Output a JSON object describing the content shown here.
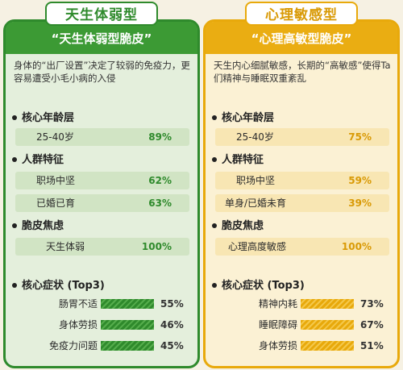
{
  "left": {
    "type_label": "天生体弱型",
    "title": "“天生体弱型脆皮”",
    "description": "身体的“出厂设置”决定了较弱的免疫力，更容易遭受小毛小病的入侵",
    "age_section": "核心年龄层",
    "age_rows": [
      {
        "label": "25-40岁",
        "value": "89%"
      }
    ],
    "group_section": "人群特征",
    "group_rows": [
      {
        "label": "职场中坚",
        "value": "62%"
      },
      {
        "label": "已婚已育",
        "value": "63%"
      }
    ],
    "anxiety_section": "脆皮焦虑",
    "anxiety_rows": [
      {
        "label": "天生体弱",
        "value": "100%"
      }
    ],
    "symptom_section": "核心症状 (Top3)",
    "symptoms": [
      {
        "label": "肠胃不适",
        "value": "55%"
      },
      {
        "label": "身体劳损",
        "value": "46%"
      },
      {
        "label": "免疫力问题",
        "value": "45%"
      }
    ]
  },
  "right": {
    "type_label": "心理敏感型",
    "title": "“心理高敏型脆皮”",
    "description": "天生内心细腻敏感，长期的“高敏感”使得Ta们精神与睡眠双重紊乱",
    "age_section": "核心年龄层",
    "age_rows": [
      {
        "label": "25-40岁",
        "value": "75%"
      }
    ],
    "group_section": "人群特征",
    "group_rows": [
      {
        "label": "职场中坚",
        "value": "59%"
      },
      {
        "label": "单身/已婚未育",
        "value": "39%"
      }
    ],
    "anxiety_section": "脆皮焦虑",
    "anxiety_rows": [
      {
        "label": "心理高度敏感",
        "value": "100%"
      }
    ],
    "symptom_section": "核心症状 (Top3)",
    "symptoms": [
      {
        "label": "精神内耗",
        "value": "73%"
      },
      {
        "label": "睡眠障碍",
        "value": "67%"
      },
      {
        "label": "身体劳损",
        "value": "51%"
      }
    ]
  },
  "colors": {
    "green": "#2f8a2c",
    "green_light": "#e4efdc",
    "yellow": "#e8a90b",
    "yellow_light": "#fbf1d4"
  }
}
